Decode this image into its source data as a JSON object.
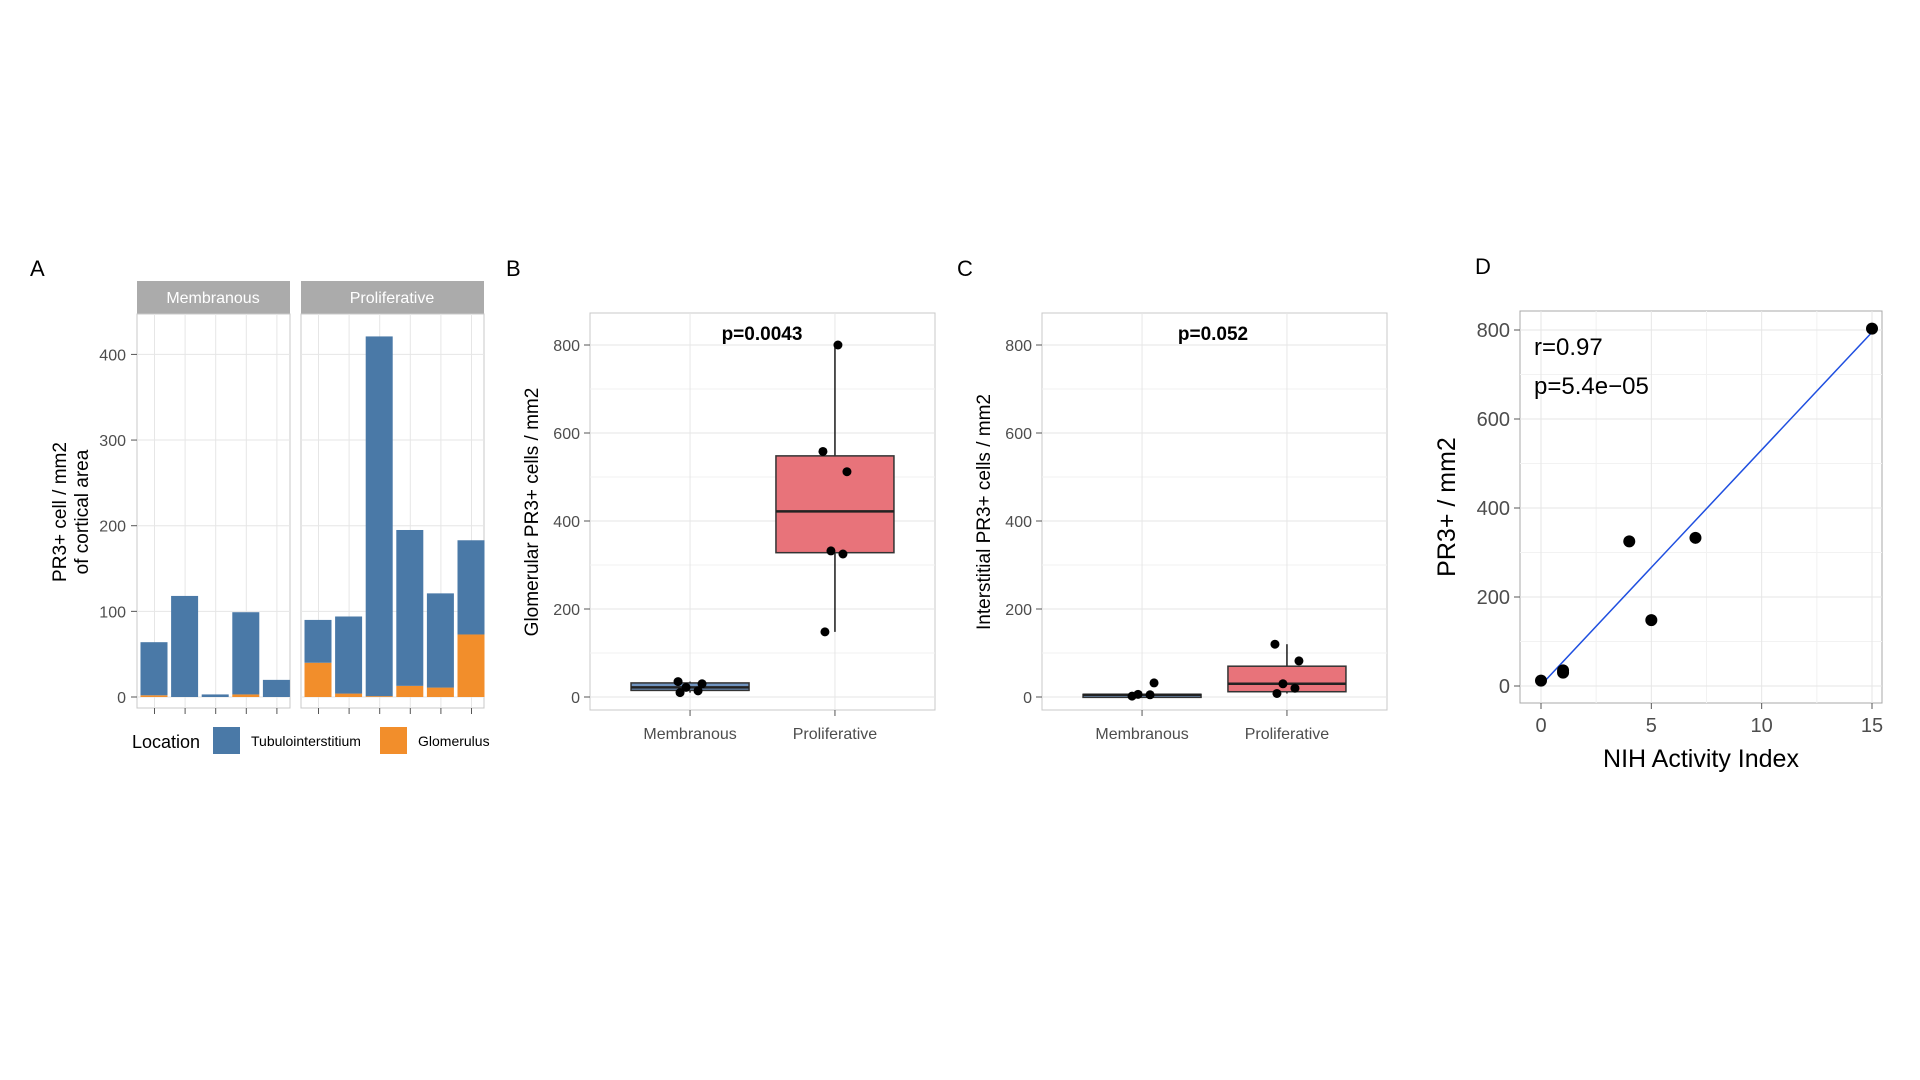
{
  "colors": {
    "tubulointerstitium": "#4A79A7",
    "glomerulus": "#F28E2B",
    "box_proliferative": "#E8737A",
    "box_membranous": "#6F93BF",
    "strip_bg": "#ABABAB",
    "panel_border": "#C8C8C8",
    "grid_major": "#E6E6E6",
    "grid_minor": "#F2F2F2",
    "regression_line": "#1F4FE0",
    "point": "#000000"
  },
  "chart_data": [
    {
      "panel": "A",
      "type": "bar",
      "stacked": true,
      "facets": [
        {
          "label": "Membranous",
          "stacks": [
            {
              "tubulointerstitium": 62,
              "glomerulus": 2
            },
            {
              "tubulointerstitium": 118,
              "glomerulus": 0
            },
            {
              "tubulointerstitium": 3,
              "glomerulus": 0
            },
            {
              "tubulointerstitium": 96,
              "glomerulus": 3
            },
            {
              "tubulointerstitium": 20,
              "glomerulus": 0
            }
          ]
        },
        {
          "label": "Proliferative",
          "stacks": [
            {
              "tubulointerstitium": 50,
              "glomerulus": 40
            },
            {
              "tubulointerstitium": 90,
              "glomerulus": 4
            },
            {
              "tubulointerstitium": 420,
              "glomerulus": 1
            },
            {
              "tubulointerstitium": 182,
              "glomerulus": 13
            },
            {
              "tubulointerstitium": 110,
              "glomerulus": 11
            },
            {
              "tubulointerstitium": 110,
              "glomerulus": 73
            }
          ]
        }
      ],
      "ylabel_line1": "PR3+ cell / mm2",
      "ylabel_line2": "of cortical area",
      "ylim": [
        0,
        440
      ],
      "yticks": [
        "0",
        "100",
        "200",
        "300",
        "400"
      ],
      "legend": {
        "title": "Location",
        "items": [
          "Tubulointerstitium",
          "Glomerulus"
        ],
        "placement": "bottom"
      }
    },
    {
      "panel": "B",
      "type": "box",
      "categories": [
        "Membranous",
        "Proliferative"
      ],
      "points": [
        [
          10,
          14,
          22,
          30,
          35
        ],
        [
          148,
          325,
          332,
          512,
          558,
          800
        ]
      ],
      "boxes": [
        {
          "min": 10,
          "q1": 15,
          "median": 22,
          "q3": 32,
          "max": 35
        },
        {
          "min": 148,
          "q1": 328,
          "median": 422,
          "q3": 548,
          "max": 800
        }
      ],
      "annotation": "p=0.0043",
      "ylabel": "Glomerular PR3+ cells / mm2",
      "ylim": [
        0,
        850
      ],
      "yticks": [
        "0",
        "200",
        "400",
        "600",
        "800"
      ]
    },
    {
      "panel": "C",
      "type": "box",
      "categories": [
        "Membranous",
        "Proliferative"
      ],
      "points": [
        [
          2,
          5,
          6,
          32
        ],
        [
          8,
          20,
          30,
          82,
          120
        ]
      ],
      "boxes": [
        {
          "min": 2,
          "q1": 4,
          "median": 5,
          "q3": 6,
          "max": 6
        },
        {
          "min": 8,
          "q1": 12,
          "median": 30,
          "q3": 70,
          "max": 120
        }
      ],
      "annotation": "p=0.052",
      "ylabel": "Interstitial PR3+ cells / mm2",
      "ylim": [
        0,
        850
      ],
      "yticks": [
        "0",
        "200",
        "400",
        "600",
        "800"
      ]
    },
    {
      "panel": "D",
      "type": "scatter",
      "x": [
        0,
        1,
        1,
        4,
        5,
        7,
        15
      ],
      "y": [
        12,
        30,
        35,
        325,
        148,
        333,
        803
      ],
      "regression": {
        "x": [
          0,
          15
        ],
        "y": [
          2,
          795
        ]
      },
      "annotation_r": "r=0.97",
      "annotation_p": "p=5.4e−05",
      "xlabel": "NIH Activity Index",
      "ylabel": "PR3+ / mm2",
      "xlim": [
        -0.7,
        15.7
      ],
      "ylim": [
        -30,
        840
      ],
      "xticks": [
        "0",
        "5",
        "10",
        "15"
      ],
      "yticks": [
        "0",
        "200",
        "400",
        "600",
        "800"
      ]
    }
  ]
}
